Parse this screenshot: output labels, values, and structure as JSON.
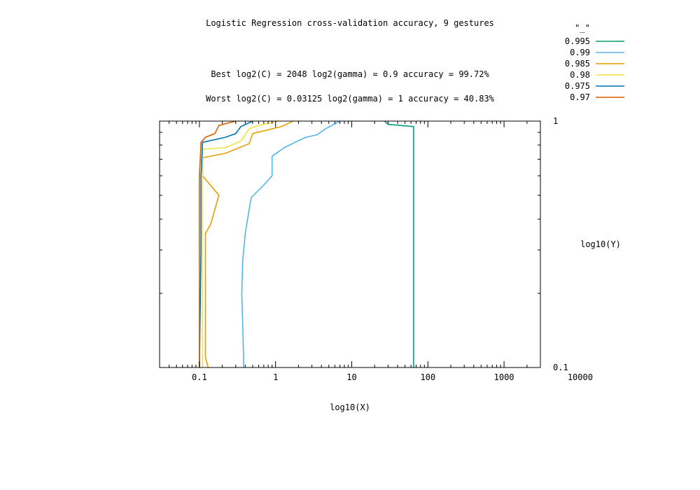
{
  "chart_data": {
    "type": "line",
    "title": "Logistic Regression cross-validation accuracy, 9 gestures",
    "annotations": [
      "Best log2(C) = 2048  log2(gamma) = 0.9  accuracy = 99.72%",
      "Worst log2(C) = 0.03125  log2(gamma) = 1   accuracy = 40.83%"
    ],
    "xlabel": "log10(X)",
    "ylabel": "log10(Y)",
    "x_scale": "log",
    "y_scale": "log",
    "xlim": [
      0.03,
      3000
    ],
    "ylim": [
      0.1,
      1
    ],
    "x_ticks": [
      {
        "value": 0.1,
        "label": "0.1"
      },
      {
        "value": 1,
        "label": "1"
      },
      {
        "value": 10,
        "label": "10"
      },
      {
        "value": 100,
        "label": "100"
      },
      {
        "value": 1000,
        "label": "1000"
      },
      {
        "value": 10000,
        "label": "10000"
      }
    ],
    "y_ticks": [
      {
        "value": 0.1,
        "label": "0.1"
      },
      {
        "value": 1,
        "label": "1"
      }
    ],
    "grid": false,
    "legend_title": "\"_\"",
    "legend_position": "top-right, outside plot",
    "series": [
      {
        "name": "0.995",
        "color": "#009e73",
        "points": [
          [
            27,
            1.0
          ],
          [
            30,
            0.97
          ],
          [
            65,
            0.95
          ],
          [
            65,
            0.1
          ]
        ]
      },
      {
        "name": "0.99",
        "color": "#56b4e9",
        "points": [
          [
            7,
            1.0
          ],
          [
            4.5,
            0.93
          ],
          [
            3.5,
            0.88
          ],
          [
            2.5,
            0.86
          ],
          [
            1.8,
            0.82
          ],
          [
            1.3,
            0.78
          ],
          [
            0.9,
            0.72
          ],
          [
            0.9,
            0.6
          ],
          [
            0.7,
            0.55
          ],
          [
            0.48,
            0.49
          ],
          [
            0.45,
            0.44
          ],
          [
            0.4,
            0.35
          ],
          [
            0.37,
            0.27
          ],
          [
            0.36,
            0.2
          ],
          [
            0.37,
            0.15
          ],
          [
            0.38,
            0.11
          ],
          [
            0.38,
            0.1
          ]
        ]
      },
      {
        "name": "0.985",
        "color": "#e69f00",
        "points": [
          [
            1.7,
            1.0
          ],
          [
            1.2,
            0.95
          ],
          [
            0.5,
            0.89
          ],
          [
            0.45,
            0.81
          ],
          [
            0.22,
            0.74
          ],
          [
            0.11,
            0.71
          ],
          [
            0.11,
            0.6
          ],
          [
            0.18,
            0.5
          ],
          [
            0.14,
            0.38
          ],
          [
            0.12,
            0.35
          ],
          [
            0.12,
            0.2
          ],
          [
            0.12,
            0.11
          ],
          [
            0.13,
            0.1
          ]
        ]
      },
      {
        "name": "0.98",
        "color": "#f0e442",
        "points": [
          [
            1.1,
            1.0
          ],
          [
            0.6,
            0.96
          ],
          [
            0.45,
            0.93
          ],
          [
            0.35,
            0.83
          ],
          [
            0.22,
            0.78
          ],
          [
            0.11,
            0.77
          ],
          [
            0.11,
            0.6
          ],
          [
            0.11,
            0.3
          ],
          [
            0.11,
            0.1
          ]
        ]
      },
      {
        "name": "0.975",
        "color": "#0072b2",
        "points": [
          [
            0.5,
            1.0
          ],
          [
            0.35,
            0.95
          ],
          [
            0.3,
            0.89
          ],
          [
            0.22,
            0.86
          ],
          [
            0.11,
            0.82
          ],
          [
            0.105,
            0.6
          ],
          [
            0.105,
            0.3
          ],
          [
            0.1,
            0.1
          ]
        ]
      },
      {
        "name": "0.97",
        "color": "#d55e00",
        "points": [
          [
            0.3,
            1.0
          ],
          [
            0.18,
            0.96
          ],
          [
            0.16,
            0.89
          ],
          [
            0.12,
            0.86
          ],
          [
            0.105,
            0.82
          ],
          [
            0.1,
            0.6
          ],
          [
            0.1,
            0.3
          ],
          [
            0.1,
            0.1
          ]
        ]
      }
    ]
  }
}
